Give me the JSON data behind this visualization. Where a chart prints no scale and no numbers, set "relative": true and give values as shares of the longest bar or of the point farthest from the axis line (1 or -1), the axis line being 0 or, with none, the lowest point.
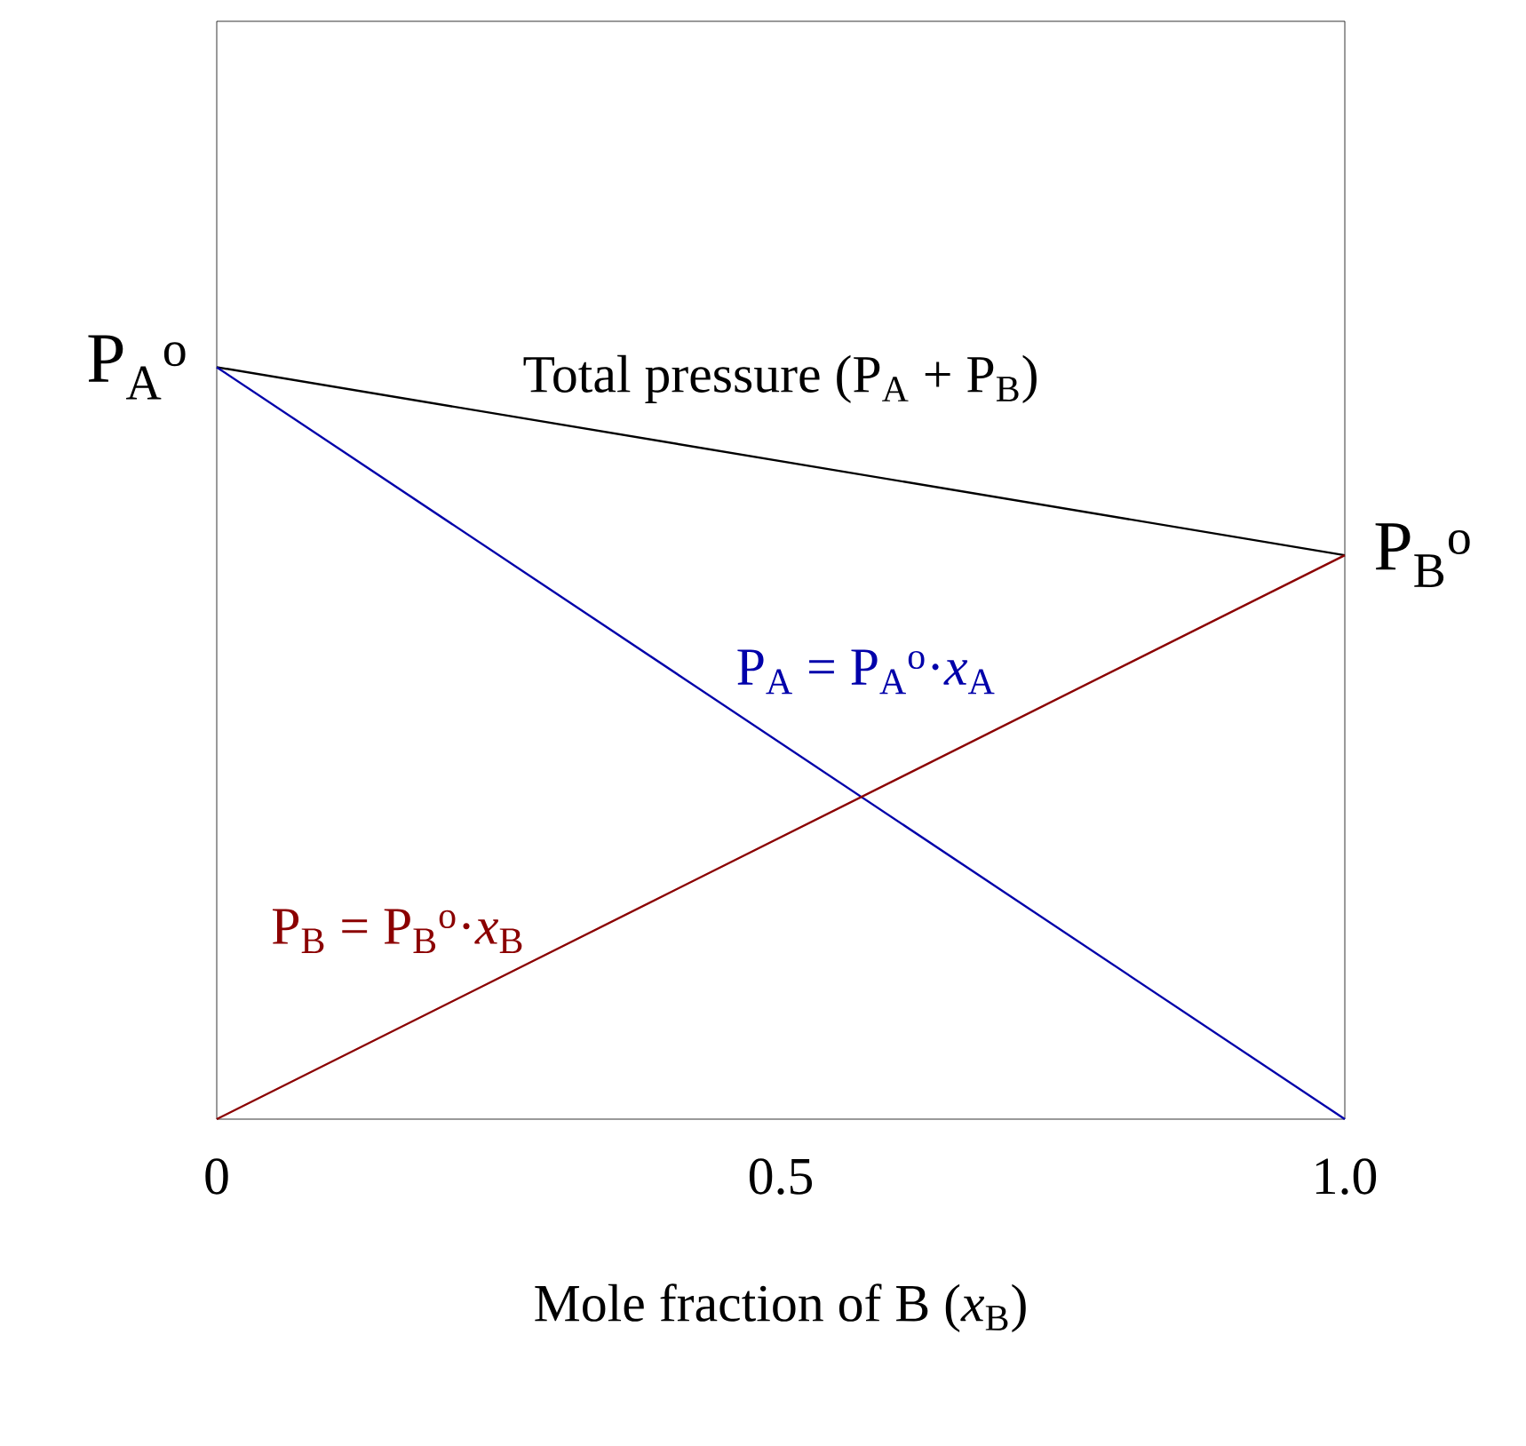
{
  "chart_data": {
    "type": "line",
    "relative": true,
    "x": [
      0,
      1
    ],
    "xlim": [
      0,
      1
    ],
    "xticks": [
      0,
      0.5,
      {
        "value": 1,
        "label": "1.0"
      }
    ],
    "xlabel": "Mole fraction of B (*x*$_{B}$)",
    "series": [
      {
        "name": "Total pressure (P$_{A}$ + P$_{B}$)",
        "color": "#000000",
        "values": [
          1,
          0.75
        ]
      },
      {
        "name": "P$_{A}$ = P$_{A}$$^{o}$·*x*$_{A}$",
        "color": "#0000aa",
        "values": [
          1,
          0
        ]
      },
      {
        "name": "P$_{B}$ = P$_{B}$$^{o}$·*x*$_{B}$",
        "color": "#8b0000",
        "values": [
          0,
          0.75
        ]
      }
    ],
    "annotations": [
      {
        "text": "P$_{A}$$^{o}$",
        "x": 0,
        "y": 1
      },
      {
        "text": "P$_{B}$$^{o}$",
        "x": 1,
        "y": 0.75
      }
    ]
  }
}
